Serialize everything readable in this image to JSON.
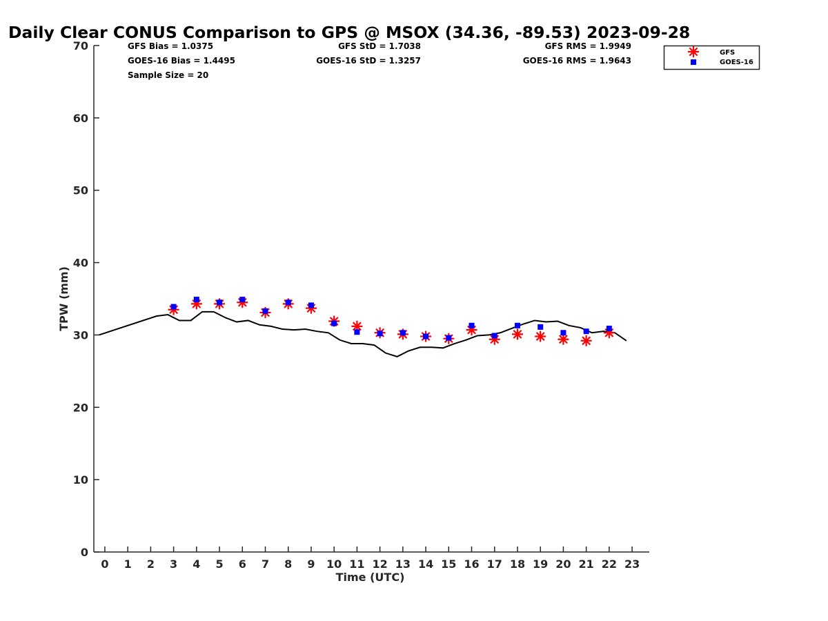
{
  "chart_data": {
    "type": "scatter",
    "title": "Daily Clear CONUS Comparison to GPS @ MSOX (34.36, -89.53) 2023-09-28",
    "xlabel": "Time (UTC)",
    "ylabel": "TPW (mm)",
    "xlim": [
      -0.48,
      23.75
    ],
    "ylim": [
      0,
      70
    ],
    "xticks": [
      0,
      1,
      2,
      3,
      4,
      5,
      6,
      7,
      8,
      9,
      10,
      11,
      12,
      13,
      14,
      15,
      16,
      17,
      18,
      19,
      20,
      21,
      22,
      23
    ],
    "yticks": [
      0,
      10,
      20,
      30,
      40,
      50,
      60,
      70
    ],
    "grid": false,
    "legend_position": "top-right-outside",
    "stats": {
      "gfs_bias": "GFS Bias = 1.0375",
      "goes_bias": "GOES-16 Bias = 1.4495",
      "sample_size": "Sample Size = 20",
      "gfs_std": "GFS StD = 1.7038",
      "goes_std": "GOES-16 StD = 1.3257",
      "gfs_rms": "GFS RMS = 1.9949",
      "goes_rms": "GOES-16 RMS = 1.9643"
    },
    "series": [
      {
        "name": "GFS",
        "marker": "asterisk",
        "color": "#ff0000",
        "x": [
          3,
          4,
          5,
          6,
          7,
          8,
          9,
          10,
          11,
          12,
          13,
          14,
          15,
          16,
          17,
          18,
          19,
          20,
          21,
          22
        ],
        "y": [
          33.5,
          34.3,
          34.3,
          34.5,
          33.1,
          34.3,
          33.7,
          31.9,
          31.2,
          30.3,
          30.1,
          29.8,
          29.5,
          30.7,
          29.4,
          30.1,
          29.8,
          29.4,
          29.2,
          30.3
        ]
      },
      {
        "name": "GOES-16",
        "marker": "square",
        "color": "#0000ff",
        "x": [
          3,
          4,
          5,
          6,
          7,
          8,
          9,
          10,
          11,
          12,
          13,
          14,
          15,
          16,
          17,
          18,
          19,
          20,
          21,
          22
        ],
        "y": [
          33.9,
          34.9,
          34.5,
          34.9,
          33.3,
          34.5,
          34.1,
          31.6,
          30.4,
          30.2,
          30.3,
          29.8,
          29.6,
          31.3,
          29.9,
          31.3,
          31.1,
          30.3,
          30.5,
          30.9
        ]
      },
      {
        "name": "GPS",
        "marker": "line",
        "color": "#000000",
        "x": [
          -0.25,
          2.25,
          2.75,
          3.25,
          3.75,
          4.25,
          4.75,
          5.25,
          5.75,
          6.25,
          6.75,
          7.25,
          7.75,
          8.25,
          8.75,
          9.25,
          9.75,
          10.25,
          10.75,
          11.25,
          11.75,
          12.25,
          12.75,
          13.25,
          13.75,
          14.25,
          14.75,
          15.25,
          15.75,
          16.25,
          16.75,
          17.25,
          17.75,
          18.25,
          18.75,
          19.25,
          19.75,
          20.25,
          20.75,
          21.25,
          21.75,
          22.25,
          22.75
        ],
        "y": [
          30.0,
          32.6,
          32.8,
          32.0,
          32.0,
          33.2,
          33.2,
          32.4,
          31.8,
          32.0,
          31.4,
          31.2,
          30.8,
          30.7,
          30.8,
          30.5,
          30.3,
          29.3,
          28.8,
          28.8,
          28.6,
          27.5,
          27.0,
          27.8,
          28.3,
          28.3,
          28.2,
          28.8,
          29.3,
          29.9,
          30.0,
          30.3,
          30.9,
          31.5,
          32.0,
          31.8,
          31.9,
          31.3,
          31.0,
          30.3,
          30.5,
          30.3,
          29.2
        ]
      }
    ]
  }
}
